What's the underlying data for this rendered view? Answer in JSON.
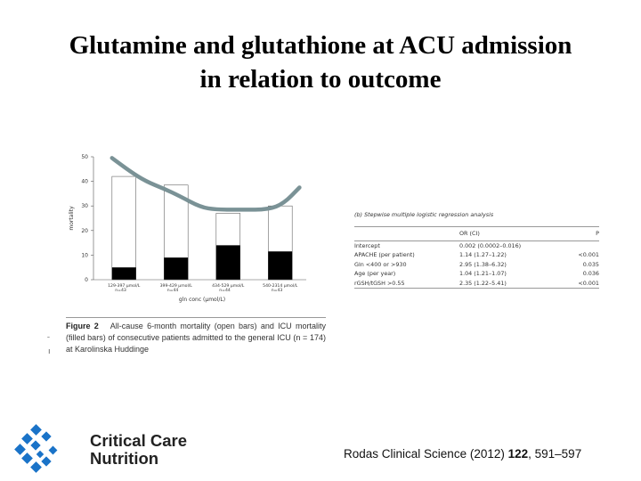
{
  "slide": {
    "title_line1": "Glutamine and glutathione at ACU admission",
    "title_line2": "in relation to outcome",
    "caption_bold": "Figure 2",
    "caption_text": "All-cause 6-month mortality (open bars) and ICU mortality (filled bars) of consecutive patients admitted to the general ICU (n = 174) at Karolinska Huddinge",
    "citation_prefix": "Rodas",
    "citation_mid": " Clinical Science (2012) ",
    "citation_vol": "122",
    "citation_pages": ", 591–597",
    "logo_line1": "Critical Care",
    "logo_line2": "Nutrition",
    "accent_color": "#1a73c8",
    "trend_color": "#7a9296"
  },
  "chart_data": {
    "type": "bar",
    "ylabel": "mortality",
    "xlabel": "gln conc (µmol/L)",
    "ylim": [
      0,
      50
    ],
    "yticks": [
      0,
      10,
      20,
      30,
      40,
      50
    ],
    "categories": [
      "129-397 µmol/L n=43",
      "399-429 µmol/L n=44",
      "434-529 µmol/L n=44",
      "540-2314 µmol/L n=43"
    ],
    "series": [
      {
        "name": "All-cause 6-month mortality",
        "values": [
          42,
          38.5,
          27,
          30
        ],
        "style": "open"
      },
      {
        "name": "ICU mortality",
        "values": [
          5,
          9,
          14,
          11.5
        ],
        "style": "filled"
      }
    ],
    "trend_line": [
      [
        0,
        49.5
      ],
      [
        0.35,
        44
      ],
      [
        0.65,
        40
      ],
      [
        1,
        37
      ],
      [
        1.3,
        34
      ],
      [
        1.7,
        29.5
      ],
      [
        2,
        28.5
      ],
      [
        2.5,
        28.5
      ],
      [
        3,
        28.5
      ],
      [
        3.3,
        31
      ],
      [
        3.6,
        37.5
      ]
    ]
  },
  "table": {
    "title": "(b) Stepwise multiple logistic regression analysis",
    "headers": [
      "",
      "OR (CI)",
      "P"
    ],
    "rows": [
      [
        "Intercept",
        "0.002 (0.0002–0.016)",
        ""
      ],
      [
        "APACHE (per patient)",
        "1.14 (1.27–1.22)",
        "<0.001"
      ],
      [
        "Gln <400 or >930",
        "2.95 (1.38–6.32)",
        "0.035"
      ],
      [
        "Age (per year)",
        "1.04 (1.21–1.07)",
        "0.036"
      ],
      [
        "rGSH/tGSH >0.55",
        "2.35 (1.22–5.41)",
        "<0.001"
      ]
    ]
  }
}
